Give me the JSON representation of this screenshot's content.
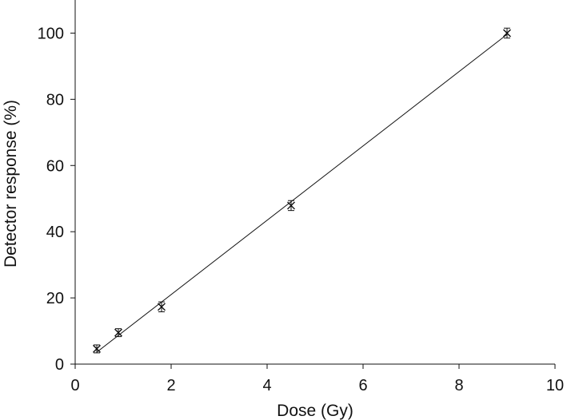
{
  "chart_data": {
    "type": "scatter",
    "xlabel": "Dose (Gy)",
    "ylabel": "Detector response (%)",
    "xlim": [
      0,
      10
    ],
    "ylim": [
      0,
      110
    ],
    "xticks": [
      "0",
      "2",
      "4",
      "6",
      "8",
      "10"
    ],
    "yticks": [
      "0",
      "20",
      "40",
      "60",
      "80",
      "100"
    ],
    "grid": false,
    "legend": "none",
    "series": [
      {
        "marker": "x-with-error-bars",
        "x": [
          0.45,
          0.9,
          1.8,
          4.5,
          9.0
        ],
        "y": [
          4.6,
          9.5,
          17.3,
          47.9,
          100.0
        ],
        "y_error": [
          1.2,
          1.2,
          1.5,
          1.5,
          1.5
        ]
      }
    ],
    "fit_line": {
      "type": "linear",
      "x": [
        0.45,
        9.0
      ],
      "y": [
        3.6,
        99.6
      ]
    },
    "colors": {
      "axis": "#111111",
      "marker": "#111111",
      "line": "#111111"
    }
  }
}
